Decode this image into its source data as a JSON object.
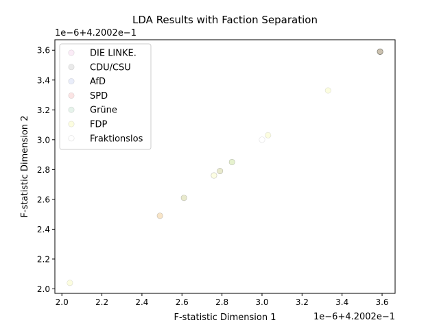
{
  "chart_data": {
    "type": "scatter",
    "title": "LDA Results with Faction Separation",
    "xlabel": "F-statistic Dimension 1",
    "ylabel": "F-statistic Dimension 2",
    "x_offset_label": "1e−6+4.2002e−1",
    "y_offset_label": "1e−6+4.2002e−1",
    "xlim": [
      1.965,
      3.665
    ],
    "ylim": [
      1.97,
      3.67
    ],
    "xticks": [
      2.0,
      2.2,
      2.4,
      2.6,
      2.8,
      3.0,
      3.2,
      3.4,
      3.6
    ],
    "xtick_labels": [
      "2.0",
      "2.2",
      "2.4",
      "2.6",
      "2.8",
      "3.0",
      "3.2",
      "3.4",
      "3.6"
    ],
    "yticks": [
      2.0,
      2.2,
      2.4,
      2.6,
      2.8,
      3.0,
      3.2,
      3.4,
      3.6
    ],
    "ytick_labels": [
      "2.0",
      "2.2",
      "2.4",
      "2.6",
      "2.8",
      "3.0",
      "3.2",
      "3.4",
      "3.6"
    ],
    "grid": false,
    "legend_position": "upper-left",
    "series": [
      {
        "name": "DIE LINKE.",
        "color": "#e05fbf",
        "points": [
          [
            3.59,
            3.59
          ]
        ]
      },
      {
        "name": "CDU/CSU",
        "color": "#555555",
        "points": [
          [
            3.59,
            3.59
          ],
          [
            2.61,
            2.61
          ],
          [
            2.79,
            2.79
          ]
        ]
      },
      {
        "name": "AfD",
        "color": "#4a6cd6",
        "points": [
          [
            3.59,
            3.59
          ]
        ]
      },
      {
        "name": "SPD",
        "color": "#e02020",
        "points": [
          [
            3.59,
            3.59
          ],
          [
            2.49,
            2.49
          ]
        ]
      },
      {
        "name": "Grüne",
        "color": "#2e9e5b",
        "points": [
          [
            3.59,
            3.59
          ],
          [
            2.85,
            2.85
          ]
        ]
      },
      {
        "name": "FDP",
        "color": "#e8f000",
        "points": [
          [
            3.59,
            3.59
          ],
          [
            2.61,
            2.61
          ],
          [
            2.85,
            2.85
          ],
          [
            3.03,
            3.03
          ],
          [
            3.33,
            3.33
          ],
          [
            2.49,
            2.49
          ],
          [
            2.04,
            2.04
          ],
          [
            2.76,
            2.76
          ],
          [
            2.79,
            2.79
          ]
        ]
      },
      {
        "name": "Fraktionslos",
        "color": "#ffffff",
        "points": [
          [
            3.59,
            3.59
          ],
          [
            3.0,
            3.0
          ],
          [
            2.76,
            2.76
          ]
        ]
      }
    ]
  }
}
